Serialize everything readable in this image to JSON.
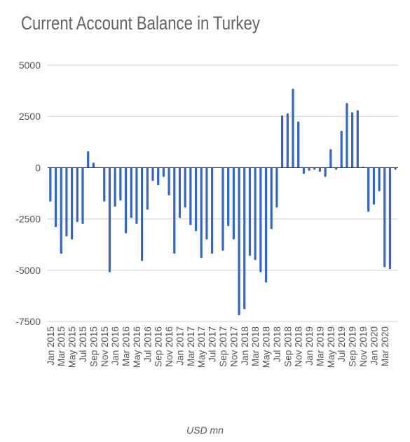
{
  "chart_data": {
    "type": "bar",
    "title": "Current Account Balance in Turkey",
    "xlabel": "USD mn",
    "ylabel": "",
    "ylim": [
      -7500,
      5000
    ],
    "y_ticks": [
      "5000",
      "2500",
      "0",
      "-2500",
      "-5000",
      "-7500"
    ],
    "x_tick_labels": [
      "Jan 2015",
      "Mar 2015",
      "May 2015",
      "Jul 2015",
      "Sep 2015",
      "Nov 2015",
      "Jan 2016",
      "Mar 2016",
      "May 2016",
      "Jul 2016",
      "Sep 2016",
      "Nov 2016",
      "Jan 2017",
      "Mar 2017",
      "May 2017",
      "Jul 2017",
      "Sep 2017",
      "Nov 2017",
      "Jan 2018",
      "Mar 2018",
      "May 2018",
      "Jul 2018",
      "Sep 2018",
      "Nov 2018",
      "Jan 2019",
      "Mar 2019",
      "May 2019",
      "Jul 2019",
      "Sep 2019",
      "Nov 2019",
      "Jan 2020",
      "Mar 2020"
    ],
    "categories": [
      "Jan 2015",
      "Feb 2015",
      "Mar 2015",
      "Apr 2015",
      "May 2015",
      "Jun 2015",
      "Jul 2015",
      "Aug 2015",
      "Sep 2015",
      "Oct 2015",
      "Nov 2015",
      "Dec 2015",
      "Jan 2016",
      "Feb 2016",
      "Mar 2016",
      "Apr 2016",
      "May 2016",
      "Jun 2016",
      "Jul 2016",
      "Aug 2016",
      "Sep 2016",
      "Oct 2016",
      "Nov 2016",
      "Dec 2016",
      "Jan 2017",
      "Feb 2017",
      "Mar 2017",
      "Apr 2017",
      "May 2017",
      "Jun 2017",
      "Jul 2017",
      "Aug 2017",
      "Sep 2017",
      "Oct 2017",
      "Nov 2017",
      "Dec 2017",
      "Jan 2018",
      "Feb 2018",
      "Mar 2018",
      "Apr 2018",
      "May 2018",
      "Jun 2018",
      "Jul 2018",
      "Aug 2018",
      "Sep 2018",
      "Oct 2018",
      "Nov 2018",
      "Dec 2018",
      "Jan 2019",
      "Feb 2019",
      "Mar 2019",
      "Apr 2019",
      "May 2019",
      "Jun 2019",
      "Jul 2019",
      "Aug 2019",
      "Sep 2019",
      "Oct 2019",
      "Nov 2019",
      "Dec 2019",
      "Jan 2020",
      "Feb 2020",
      "Mar 2020",
      "Apr 2020",
      "May 2020"
    ],
    "values": [
      -1650,
      -2900,
      -4200,
      -3350,
      -3500,
      -2650,
      -2750,
      800,
      250,
      0,
      -1650,
      -5100,
      -1900,
      -1600,
      -3200,
      -2450,
      -2750,
      -4550,
      -2050,
      -650,
      -850,
      -450,
      -1350,
      -4200,
      -2450,
      -1950,
      -2800,
      -3100,
      -4400,
      -3500,
      -4200,
      0,
      -4050,
      -2850,
      -3500,
      -7200,
      -6900,
      -4300,
      -4500,
      -5100,
      -5600,
      -3000,
      -1950,
      2550,
      2650,
      3850,
      2250,
      -300,
      -150,
      -100,
      -200,
      -450,
      900,
      -100,
      1800,
      3150,
      2700,
      2800,
      50,
      -2150,
      -1800,
      -1150,
      -4850,
      -4950,
      -100
    ],
    "grid": true,
    "legend": "none",
    "bar_color": "#3366cc",
    "grid_color": "#cccccc",
    "zero_line_color": "#333333"
  }
}
